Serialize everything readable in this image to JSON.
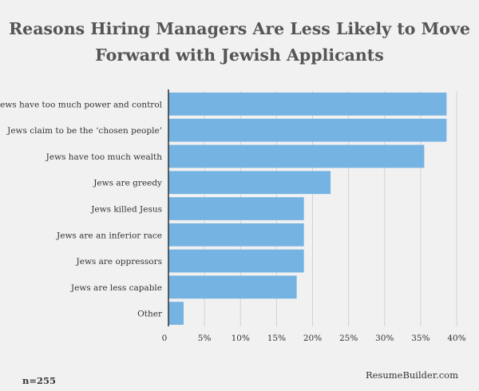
{
  "chart_data": {
    "type": "bar",
    "orientation": "horizontal",
    "title": "Reasons Hiring Managers Are Less Likely to Move Forward with Jewish Applicants",
    "title_lines": [
      "Reasons Hiring Managers Are Less Likely to Move",
      "Forward with Jewish Applicants"
    ],
    "categories": [
      "Jews have too much power and control",
      "Jews claim to be the ‘chosen people’",
      "Jews have too much wealth",
      "Jews are greedy",
      "Jews killed Jesus",
      "Jews are an inferior race",
      "Jews are oppressors",
      "Jews are less capable",
      "Other"
    ],
    "values": [
      38.6,
      38.6,
      35.5,
      22.5,
      18.8,
      18.8,
      18.8,
      17.8,
      2.1
    ],
    "xlabel": "",
    "ylabel": "",
    "xlim": [
      0,
      40
    ],
    "ticks": [
      0,
      5,
      10,
      15,
      20,
      25,
      30,
      35,
      40
    ],
    "tick_labels": [
      "0",
      "5%",
      "10%",
      "15%",
      "20%",
      "25%",
      "30%",
      "35%",
      "40%"
    ],
    "grid": "vertical",
    "legend": "none",
    "bar_color": "#74b3e2",
    "grid_color": "#d2d2d2",
    "axis_color": "#333333"
  },
  "footer": {
    "sample_size": "n=255",
    "source": "ResumeBuilder.com"
  }
}
